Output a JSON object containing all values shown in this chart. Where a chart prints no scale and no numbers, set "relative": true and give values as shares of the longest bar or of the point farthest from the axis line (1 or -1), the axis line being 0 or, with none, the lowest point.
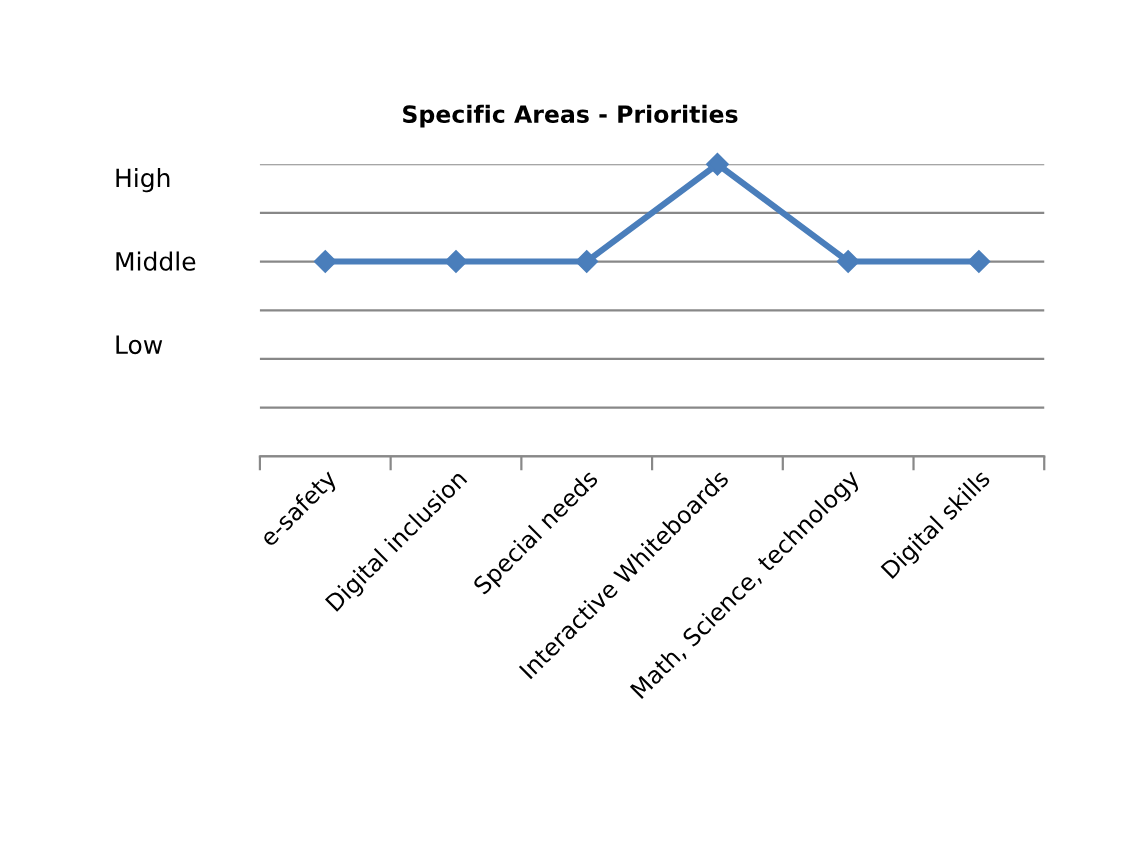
{
  "chart_data": {
    "type": "line",
    "title": "Specific Areas - Priorities",
    "categories": [
      "e-safety",
      "Digital inclusion",
      "Special needs",
      "Interactive Whiteboards",
      "Math, Science, technology",
      "Digital skills"
    ],
    "series": [
      {
        "color": "#4a7ebb",
        "values": [
          0.667,
          0.667,
          0.667,
          1,
          0.667,
          0.667
        ]
      }
    ],
    "relative": true,
    "annotations": [
      "High",
      "Middle",
      "Low"
    ],
    "grid": "y",
    "legend": false,
    "marker": "diamond",
    "line_style": "solid"
  }
}
